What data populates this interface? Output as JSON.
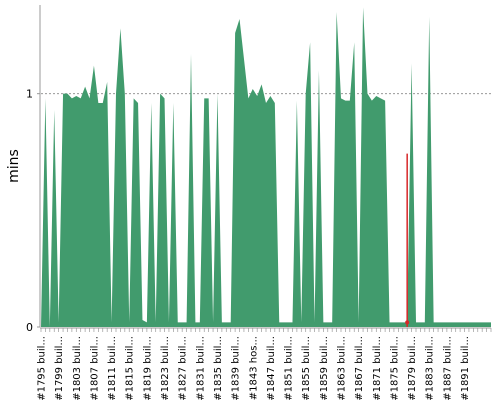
{
  "chart_data": {
    "type": "area",
    "xlabel": "",
    "ylabel": "mins",
    "ylim": [
      0,
      1.38
    ],
    "reference_line": 1,
    "yticks": [
      {
        "value": 0,
        "label": "0"
      },
      {
        "value": 1,
        "label": "1"
      }
    ],
    "tick_labels": [
      "#1795 buil...",
      "#1799 buil...",
      "#1803 buil...",
      "#1807 buil...",
      "#1811 buil...",
      "#1815 buil...",
      "#1819 buil...",
      "#1823 buil...",
      "#1827 buil...",
      "#1831 buil...",
      "#1835 buil...",
      "#1839 buil...",
      "#1843 hos...",
      "#1847 buil...",
      "#1851 buil...",
      "#1855 buil...",
      "#1859 buil...",
      "#1863 buil...",
      "#1867 buil...",
      "#1871 buil...",
      "#1875 buil...",
      "#1879 buil...",
      "#1883 buil...",
      "#1887 buil...",
      "#1891 buil..."
    ],
    "x": [
      1795,
      1796,
      1797,
      1798,
      1799,
      1800,
      1801,
      1802,
      1803,
      1804,
      1805,
      1806,
      1807,
      1808,
      1809,
      1810,
      1811,
      1812,
      1813,
      1814,
      1815,
      1816,
      1817,
      1818,
      1819,
      1820,
      1821,
      1822,
      1823,
      1824,
      1825,
      1826,
      1827,
      1828,
      1829,
      1830,
      1831,
      1832,
      1833,
      1834,
      1835,
      1836,
      1837,
      1838,
      1839,
      1840,
      1841,
      1842,
      1843,
      1844,
      1845,
      1846,
      1847,
      1848,
      1849,
      1850,
      1851,
      1852,
      1853,
      1854,
      1855,
      1856,
      1857,
      1858,
      1859,
      1860,
      1861,
      1862,
      1863,
      1864,
      1865,
      1866,
      1867,
      1868,
      1869,
      1870,
      1871,
      1872,
      1873,
      1874,
      1875,
      1876,
      1877,
      1878,
      1879,
      1880,
      1881,
      1882,
      1883,
      1884,
      1885,
      1886,
      1887,
      1888,
      1889,
      1890,
      1891,
      1892,
      1893,
      1894,
      1895,
      1896,
      1897
    ],
    "series": [
      {
        "color": "#419b6d",
        "values": [
          0.0,
          0.98,
          0.0,
          0.93,
          0.02,
          1.0,
          1.0,
          0.98,
          0.99,
          0.98,
          1.03,
          0.98,
          1.12,
          0.96,
          0.96,
          1.05,
          0.02,
          1.0,
          1.28,
          1.0,
          0.02,
          0.98,
          0.96,
          0.03,
          0.02,
          0.96,
          0.02,
          1.0,
          0.98,
          0.02,
          0.96,
          0.02,
          0.02,
          0.02,
          1.17,
          0.02,
          0.02,
          0.98,
          0.98,
          0.02,
          1.0,
          0.02,
          0.02,
          0.02,
          1.26,
          1.32,
          1.15,
          0.98,
          1.02,
          0.99,
          1.04,
          0.96,
          0.99,
          0.96,
          0.02,
          0.02,
          0.02,
          0.02,
          0.97,
          0.02,
          1.0,
          1.22,
          0.02,
          1.1,
          0.02,
          0.02,
          0.02,
          1.35,
          0.98,
          0.97,
          0.97,
          1.22,
          0.02,
          1.37,
          1.0,
          0.97,
          0.99,
          0.98,
          0.97,
          0.02,
          0.02,
          0.02,
          0.02,
          0.02,
          1.13,
          0.02,
          0.02,
          0.02,
          1.33,
          0.02,
          0.02,
          0.02,
          0.02,
          0.02,
          0.02,
          0.02,
          0.02,
          0.02,
          0.02,
          0.02,
          0.02,
          0.02,
          0.02
        ]
      }
    ],
    "highlight": {
      "x": 1878,
      "value": 0.02,
      "color": "#d62728"
    }
  }
}
